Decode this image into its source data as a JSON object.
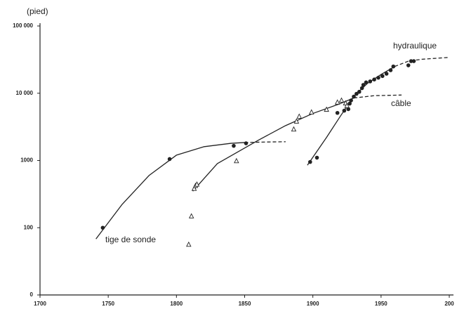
{
  "chart_data": {
    "type": "line",
    "y_unit": "(pied)",
    "xlim": [
      1700,
      2000
    ],
    "xticks": [
      1700,
      1750,
      1800,
      1850,
      1900,
      1950,
      {
        "value": 2000,
        "label": "200"
      }
    ],
    "ylim": [
      10,
      100000
    ],
    "log_y": true,
    "yticks": [
      {
        "value": 10,
        "label": "0"
      },
      100,
      1000,
      {
        "value": 10000,
        "label": "10 000"
      },
      {
        "value": 100000,
        "label": "100 000"
      }
    ],
    "color": "#222222",
    "annotations": [
      "hydraulique",
      "câble",
      "tige de sonde"
    ],
    "series": [
      {
        "type": "line",
        "style": "solid",
        "x": [
          1741,
          1760,
          1780,
          1800,
          1820,
          1840,
          1850
        ],
        "values": [
          68,
          220,
          600,
          1200,
          1600,
          1800,
          1850
        ]
      },
      {
        "type": "line",
        "style": "dashed",
        "x": [
          1850,
          1865,
          1880
        ],
        "values": [
          1850,
          1880,
          1900
        ]
      },
      {
        "type": "line",
        "style": "solid",
        "x": [
          1812,
          1830,
          1860,
          1880,
          1900,
          1920,
          1930
        ],
        "values": [
          350,
          900,
          2000,
          3300,
          5000,
          7000,
          8500
        ]
      },
      {
        "type": "line",
        "style": "dashed",
        "x": [
          1930,
          1945,
          1965
        ],
        "values": [
          8500,
          9200,
          9400
        ]
      },
      {
        "type": "line",
        "style": "solid",
        "x": [
          1896,
          1910,
          1920,
          1930,
          1940,
          1950,
          1960
        ],
        "values": [
          850,
          2200,
          4500,
          9000,
          14000,
          19000,
          25000
        ]
      },
      {
        "type": "line",
        "style": "dashed",
        "x": [
          1960,
          1970,
          1980,
          1999
        ],
        "values": [
          25000,
          30000,
          32000,
          34000
        ]
      },
      {
        "type": "scatter",
        "marker": "circle",
        "x": [
          1746,
          1795,
          1842,
          1851,
          1898,
          1903,
          1918,
          1923,
          1926,
          1927,
          1928,
          1930,
          1932,
          1934,
          1936,
          1937,
          1939,
          1942,
          1945,
          1948,
          1951,
          1954,
          1957,
          1959,
          1970,
          1972,
          1974
        ],
        "values": [
          100,
          1050,
          1650,
          1800,
          950,
          1100,
          5100,
          5500,
          5800,
          7000,
          7800,
          8900,
          9800,
          10500,
          11900,
          13300,
          14500,
          15000,
          16000,
          17000,
          18000,
          19500,
          22000,
          25000,
          26000,
          30000,
          30000
        ]
      },
      {
        "type": "scatter",
        "marker": "triangle",
        "x": [
          1809,
          1811,
          1813,
          1814,
          1815,
          1844,
          1886,
          1888,
          1890,
          1899,
          1910,
          1918,
          1921,
          1924,
          1925
        ],
        "values": [
          56,
          148,
          380,
          420,
          440,
          980,
          2900,
          3800,
          4500,
          5200,
          5700,
          7300,
          7800,
          7100,
          6500
        ]
      }
    ]
  }
}
